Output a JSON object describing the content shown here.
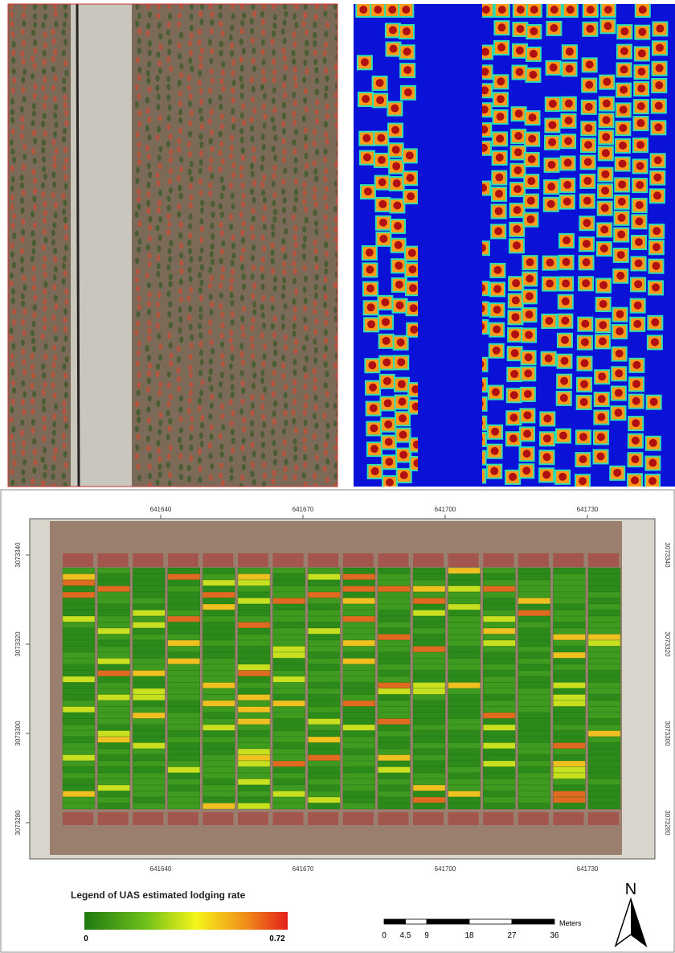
{
  "map": {
    "easting_labels": [
      641640,
      641670,
      641700,
      641730
    ],
    "northing_labels": [
      3073340,
      3073320,
      3073300,
      3073280
    ],
    "legend": {
      "title": "Legend of UAS estimated lodging rate",
      "min": 0,
      "max": 0.72
    },
    "scale_bar": {
      "unit": "Meters",
      "ticks": [
        0,
        4.5,
        9,
        18,
        27,
        36
      ]
    },
    "north_arrow": "N"
  }
}
